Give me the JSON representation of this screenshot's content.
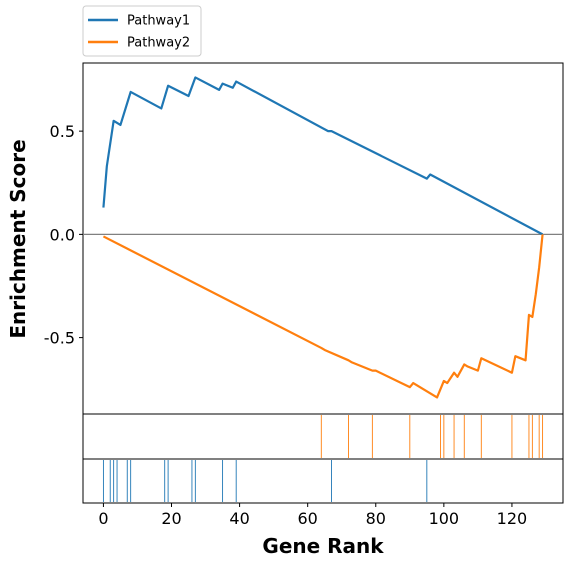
{
  "chart_data": {
    "type": "line",
    "xlabel": "Gene Rank",
    "ylabel": "Enrichment Score",
    "xlim": [
      -6,
      135
    ],
    "ylim": [
      -0.87,
      0.83
    ],
    "xticks": [
      0,
      20,
      40,
      60,
      80,
      100,
      120
    ],
    "yticks": [
      -0.5,
      0.0,
      0.5
    ],
    "ytick_labels": [
      "-0.5",
      "0.0",
      "0.5"
    ],
    "zero_line": true,
    "legend": {
      "placement": "above-left",
      "entries": [
        "Pathway1",
        "Pathway2"
      ]
    },
    "series": [
      {
        "name": "Pathway1",
        "color": "#1f77b4",
        "x": [
          0,
          1,
          3,
          5,
          8,
          17,
          19,
          25,
          27,
          34,
          35,
          38,
          39,
          66,
          67,
          95,
          96,
          129
        ],
        "y": [
          0.13,
          0.33,
          0.55,
          0.53,
          0.69,
          0.61,
          0.72,
          0.67,
          0.76,
          0.7,
          0.73,
          0.71,
          0.74,
          0.5,
          0.5,
          0.27,
          0.29,
          0.0
        ]
      },
      {
        "name": "Pathway2",
        "color": "#ff7f0e",
        "x": [
          0,
          64,
          65,
          72,
          73,
          79,
          80,
          90,
          91,
          98,
          100,
          101,
          103,
          104,
          106,
          107,
          110,
          111,
          120,
          121,
          124,
          125,
          126,
          127,
          128,
          129
        ],
        "y": [
          -0.01,
          -0.55,
          -0.56,
          -0.61,
          -0.62,
          -0.66,
          -0.66,
          -0.74,
          -0.72,
          -0.79,
          -0.71,
          -0.72,
          -0.67,
          -0.69,
          -0.63,
          -0.64,
          -0.66,
          -0.6,
          -0.67,
          -0.59,
          -0.61,
          -0.39,
          -0.4,
          -0.29,
          -0.16,
          0.0
        ]
      }
    ],
    "hit_panels": [
      {
        "series": "Pathway2",
        "color": "#ff7f0e",
        "positions": [
          64,
          72,
          79,
          90,
          99,
          100,
          103,
          106,
          111,
          120,
          125,
          126,
          128,
          129
        ]
      },
      {
        "series": "Pathway1",
        "color": "#1f77b4",
        "positions": [
          0,
          2,
          3,
          4,
          7,
          8,
          18,
          19,
          26,
          27,
          35,
          39,
          67,
          95
        ]
      }
    ]
  }
}
